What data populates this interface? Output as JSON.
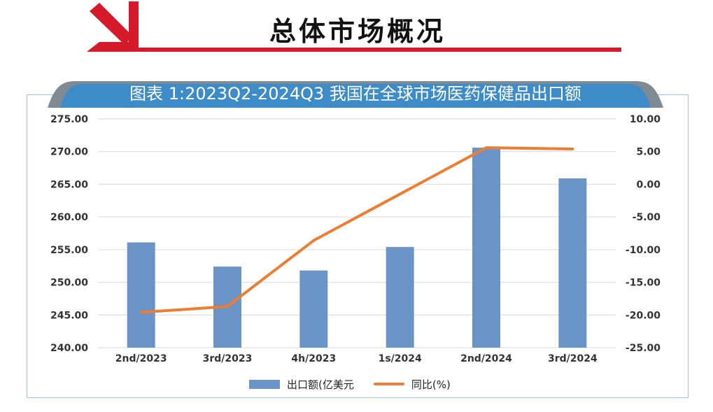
{
  "header": {
    "title": "总体市场概况"
  },
  "colors": {
    "accent_red": "#d71a2b",
    "bar": "#6a94c7",
    "line": "#ed7d31",
    "banner": "#3d8cc7",
    "banner_edge": "#7f8a95"
  },
  "chart_data": {
    "type": "bar",
    "title": "图表 1:2023Q2-2024Q3 我国在全球市场医药保健品出口额",
    "categories": [
      "2nd/2023",
      "3rd/2023",
      "4h/2023",
      "1s/2024",
      "2nd/2024",
      "3rd/2024"
    ],
    "series": [
      {
        "name": "出口额(亿美元",
        "type": "bar",
        "axis": "left",
        "values": [
          256.1,
          252.4,
          251.8,
          255.4,
          270.6,
          265.9
        ]
      },
      {
        "name": "同比(%)",
        "type": "line",
        "axis": "right",
        "values": [
          -19.6,
          -18.7,
          -8.6,
          -1.5,
          5.6,
          5.4
        ]
      }
    ],
    "y_left": {
      "min": 240,
      "max": 275,
      "ticks": [
        "240.00",
        "245.00",
        "250.00",
        "255.00",
        "260.00",
        "265.00",
        "270.00",
        "275.00"
      ]
    },
    "y_right": {
      "min": -25,
      "max": 10,
      "ticks": [
        "-25.00",
        "-20.00",
        "-15.00",
        "-10.00",
        "-5.00",
        "0.00",
        "5.00",
        "10.00"
      ]
    },
    "grid": true,
    "legend": "bottom"
  }
}
